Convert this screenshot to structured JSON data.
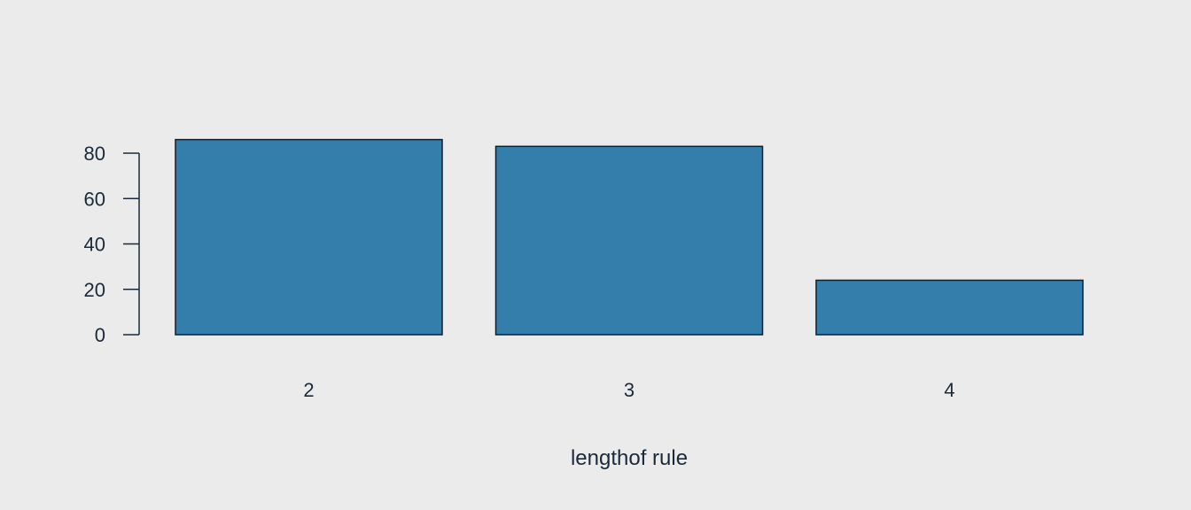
{
  "colors": {
    "background": "#ebebeb",
    "bar_fill": "#337eab",
    "bar_stroke": "#0f1f33",
    "axis": "#1b2a3a"
  },
  "chart_data": {
    "type": "bar",
    "categories": [
      "2",
      "3",
      "4"
    ],
    "values": [
      86,
      83,
      24
    ],
    "title": "",
    "xlabel": "lengthof rule",
    "ylabel": "",
    "ylim": [
      0,
      80
    ],
    "yticks": [
      0,
      20,
      40,
      60,
      80
    ],
    "grid": false,
    "legend": "none"
  }
}
